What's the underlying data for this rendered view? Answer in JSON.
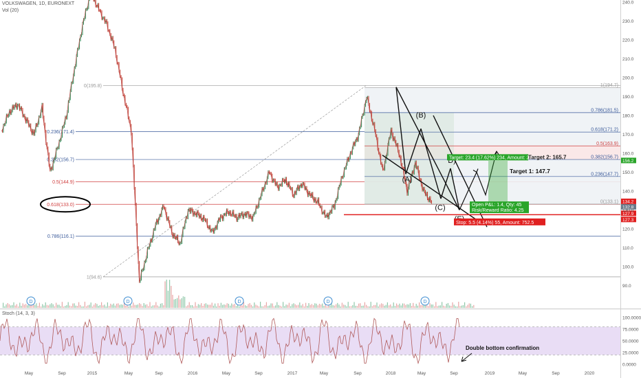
{
  "header": {
    "symbol": "VOLKSWAGEN, 1D, EURONEXT",
    "volume_label": "Vol (20)",
    "stoch_label": "Stoch (14, 3, 3)"
  },
  "colors": {
    "price": "#b83b3b",
    "candle_up": "#2e8b57",
    "candle_down": "#c0392b",
    "fib_blue": "#3a5a9a",
    "fib_red": "#d04040",
    "stoch_k": "#b05a5a",
    "stoch_band": "#e4d4f2",
    "target_green": "#2aa52a",
    "stop_red": "#e02020"
  },
  "chart_data": {
    "type": "line",
    "price_axis": {
      "range": [
        85,
        242
      ],
      "ticks": [
        240.0,
        230.0,
        220.0,
        210.0,
        200.0,
        190.0,
        180.0,
        170.0,
        160.0,
        150.0,
        140.0,
        130.0,
        120.0,
        110.0,
        100.0,
        90.0
      ]
    },
    "time_axis": {
      "labels": [
        "May",
        "Sep",
        "2015",
        "May",
        "Sep",
        "2016",
        "May",
        "Sep",
        "2017",
        "May",
        "Sep",
        "2018",
        "May",
        "Sep",
        "2019",
        "May",
        "Sep",
        "2020"
      ]
    },
    "price_series": [
      [
        "2014-04",
        172
      ],
      [
        "2014-05",
        182
      ],
      [
        "2014-06",
        186
      ],
      [
        "2014-07",
        178
      ],
      [
        "2014-08",
        170
      ],
      [
        "2014-09",
        184
      ],
      [
        "2014-10",
        150
      ],
      [
        "2014-11",
        164
      ],
      [
        "2014-12",
        180
      ],
      [
        "2015-01",
        205
      ],
      [
        "2015-02",
        228
      ],
      [
        "2015-03",
        245
      ],
      [
        "2015-04",
        236
      ],
      [
        "2015-05",
        228
      ],
      [
        "2015-06",
        215
      ],
      [
        "2015-07",
        192
      ],
      [
        "2015-08",
        172
      ],
      [
        "2015-09",
        92
      ],
      [
        "2015-10",
        108
      ],
      [
        "2015-11",
        122
      ],
      [
        "2015-12",
        132
      ],
      [
        "2016-01",
        118
      ],
      [
        "2016-02",
        112
      ],
      [
        "2016-03",
        130
      ],
      [
        "2016-04",
        128
      ],
      [
        "2016-05",
        125
      ],
      [
        "2016-06",
        118
      ],
      [
        "2016-07",
        126
      ],
      [
        "2016-08",
        129
      ],
      [
        "2016-09",
        126
      ],
      [
        "2016-10",
        128
      ],
      [
        "2016-11",
        126
      ],
      [
        "2016-12",
        138
      ],
      [
        "2017-01",
        150
      ],
      [
        "2017-02",
        142
      ],
      [
        "2017-03",
        146
      ],
      [
        "2017-04",
        138
      ],
      [
        "2017-05",
        144
      ],
      [
        "2017-06",
        138
      ],
      [
        "2017-07",
        134
      ],
      [
        "2017-08",
        126
      ],
      [
        "2017-09",
        132
      ],
      [
        "2017-10",
        148
      ],
      [
        "2017-11",
        160
      ],
      [
        "2017-12",
        170
      ],
      [
        "2018-01",
        190
      ],
      [
        "2018-02",
        172
      ],
      [
        "2018-03",
        150
      ],
      [
        "2018-04",
        172
      ],
      [
        "2018-05",
        160
      ],
      [
        "2018-06",
        140
      ],
      [
        "2018-07",
        155
      ],
      [
        "2018-08",
        140
      ],
      [
        "2018-09",
        134
      ]
    ],
    "fibonacci_left": [
      {
        "label": "0(195.8)",
        "value": 195.8
      },
      {
        "label": "0.236(171.4)",
        "value": 171.4
      },
      {
        "label": "0.382(156.7)",
        "value": 156.7
      },
      {
        "label": "0.5(144.9)",
        "value": 144.9
      },
      {
        "label": "0.618(133.0)",
        "value": 133.0
      },
      {
        "label": "0.786(116.1)",
        "value": 116.1
      },
      {
        "label": "1(94.6)",
        "value": 94.6
      }
    ],
    "fibonacci_right": [
      {
        "label": "1(194.7)",
        "value": 194.7
      },
      {
        "label": "0.786(181.5)",
        "value": 181.5
      },
      {
        "label": "0.618(171.2)",
        "value": 171.2
      },
      {
        "label": "0.5(163.9)",
        "value": 163.9
      },
      {
        "label": "0.382(156.7)",
        "value": 156.7
      },
      {
        "label": "0.236(147.7)",
        "value": 147.7
      },
      {
        "label": "0(133.1)",
        "value": 133.1
      }
    ],
    "pattern_points": [
      {
        "label": "(A)",
        "value": 148
      },
      {
        "label": "(B)",
        "value": 173
      },
      {
        "label": "(C)",
        "value": 135
      },
      {
        "label": "D)",
        "value": 152
      },
      {
        "label": "(E)",
        "value": 129
      }
    ],
    "price_badges": [
      "156.2",
      "134.2",
      "132.8",
      "127.9",
      "127.3"
    ],
    "annotations": {
      "target_box": "Target: 23.4 (17.62%) 234, Amount: 2053",
      "target_1": "Target 1: 147.7",
      "target_2_partial": "Target 2: 165.7",
      "open_pl": "Open P&L: 1.4, Qty: 45",
      "risk_reward": "Risk/Reward Ratio: 4.25",
      "stop_box": "Stop: 5.5 (4.14%) 55, Amount: 752.5",
      "double_bottom": "Double bottom confirmation"
    },
    "dividend_marker": "D",
    "stochastic": {
      "axis_ticks": [
        "100.0000",
        "75.0000",
        "50.0000",
        "25.0000",
        "0.0000"
      ],
      "band": [
        20,
        80
      ]
    }
  }
}
